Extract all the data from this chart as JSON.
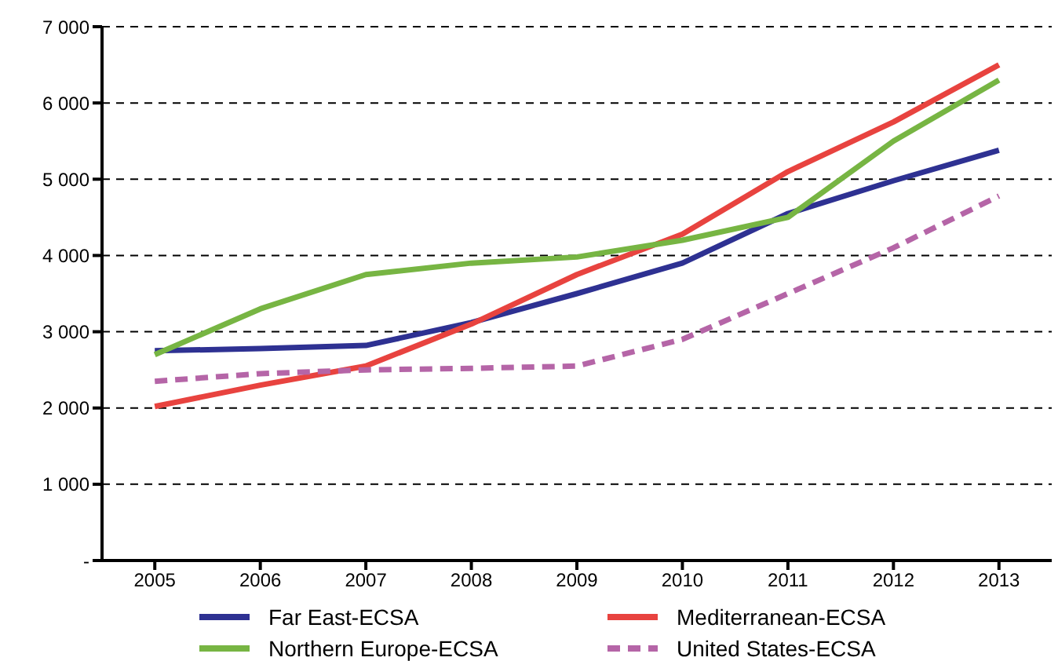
{
  "chart_data": {
    "type": "line",
    "categories": [
      "2005",
      "2006",
      "2007",
      "2008",
      "2009",
      "2010",
      "2011",
      "2012",
      "2013"
    ],
    "series": [
      {
        "name": "Far East-ECSA",
        "color": "#2e3192",
        "values": [
          2750,
          2780,
          2820,
          3120,
          3500,
          3900,
          4550,
          4980,
          5380
        ]
      },
      {
        "name": "Mediterranean-ECSA",
        "color": "#e8433f",
        "values": [
          2020,
          2300,
          2550,
          3100,
          3750,
          4280,
          5100,
          5750,
          6500
        ]
      },
      {
        "name": "Northern Europe-ECSA",
        "color": "#77b543",
        "values": [
          2700,
          3300,
          3750,
          3900,
          3980,
          4200,
          4500,
          5500,
          6300
        ]
      },
      {
        "name": "United States-ECSA",
        "color": "#b565a7",
        "values": [
          2350,
          2450,
          2500,
          2520,
          2550,
          2900,
          3500,
          4100,
          4780
        ],
        "line_style": "dashed"
      }
    ],
    "ylim": [
      0,
      7000
    ],
    "yticks": [
      {
        "value": 0,
        "label": "-"
      },
      {
        "value": 1000,
        "label": "1 000"
      },
      {
        "value": 2000,
        "label": "2 000"
      },
      {
        "value": 3000,
        "label": "3 000"
      },
      {
        "value": 4000,
        "label": "4 000"
      },
      {
        "value": 5000,
        "label": "5 000"
      },
      {
        "value": 6000,
        "label": "6 000"
      },
      {
        "value": 7000,
        "label": "7 000"
      }
    ],
    "grid": "y",
    "legend": "bottom",
    "marker": "none"
  }
}
